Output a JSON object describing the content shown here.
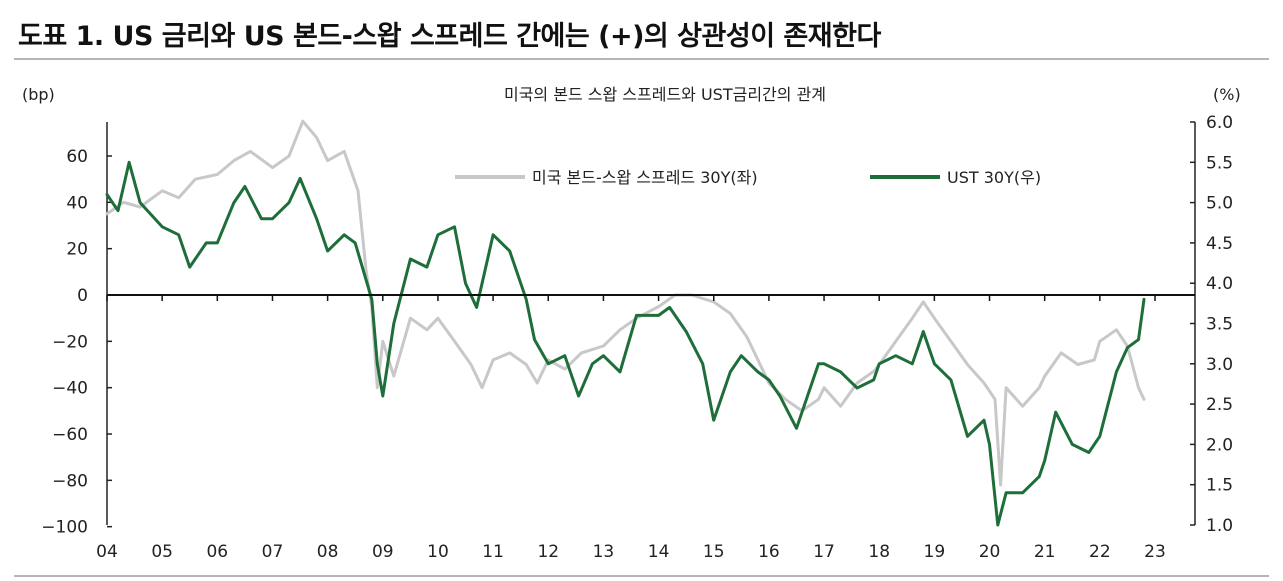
{
  "figure": {
    "title": "도표 1. US 금리와 US 본드-스왑 스프레드 간에는 (+)의 상관성이 존재한다"
  },
  "chart_data": {
    "type": "line",
    "title": "미국의 본드 스왑 스프레드와 UST금리간의 관계",
    "ylabel_left": "(bp)",
    "ylabel_right": "(%)",
    "x_ticks": [
      "04",
      "05",
      "06",
      "07",
      "08",
      "09",
      "10",
      "11",
      "12",
      "13",
      "14",
      "15",
      "16",
      "17",
      "18",
      "19",
      "20",
      "21",
      "22",
      "23"
    ],
    "y_left_ticks": [
      "60",
      "40",
      "20",
      "0",
      "−20",
      "−40",
      "−60",
      "−80",
      "−100"
    ],
    "y_right_ticks": [
      "6.0",
      "5.5",
      "5.0",
      "4.5",
      "4.0",
      "3.5",
      "3.0",
      "2.5",
      "2.0",
      "1.5",
      "1.0"
    ],
    "ylim_left": [
      -100,
      75
    ],
    "ylim_right": [
      1.0,
      6.0
    ],
    "xlim": [
      2004,
      2023
    ],
    "legend_position": "top",
    "series": [
      {
        "name": "미국 본드-스왑 스프레드 30Y(좌)",
        "axis": "left",
        "color": "#c8c8c8",
        "points": [
          [
            2004.0,
            35
          ],
          [
            2004.3,
            40
          ],
          [
            2004.6,
            38
          ],
          [
            2005.0,
            45
          ],
          [
            2005.3,
            42
          ],
          [
            2005.6,
            50
          ],
          [
            2006.0,
            52
          ],
          [
            2006.3,
            58
          ],
          [
            2006.6,
            62
          ],
          [
            2007.0,
            55
          ],
          [
            2007.3,
            60
          ],
          [
            2007.55,
            75
          ],
          [
            2007.8,
            68
          ],
          [
            2008.0,
            58
          ],
          [
            2008.3,
            62
          ],
          [
            2008.55,
            45
          ],
          [
            2008.7,
            10
          ],
          [
            2008.8,
            -5
          ],
          [
            2008.9,
            -40
          ],
          [
            2009.0,
            -20
          ],
          [
            2009.2,
            -35
          ],
          [
            2009.5,
            -10
          ],
          [
            2009.8,
            -15
          ],
          [
            2010.0,
            -10
          ],
          [
            2010.3,
            -20
          ],
          [
            2010.6,
            -30
          ],
          [
            2010.8,
            -40
          ],
          [
            2011.0,
            -28
          ],
          [
            2011.3,
            -25
          ],
          [
            2011.6,
            -30
          ],
          [
            2011.8,
            -38
          ],
          [
            2012.0,
            -28
          ],
          [
            2012.3,
            -32
          ],
          [
            2012.6,
            -25
          ],
          [
            2013.0,
            -22
          ],
          [
            2013.3,
            -15
          ],
          [
            2013.6,
            -10
          ],
          [
            2014.0,
            -5
          ],
          [
            2014.3,
            0
          ],
          [
            2014.6,
            0
          ],
          [
            2015.0,
            -3
          ],
          [
            2015.3,
            -8
          ],
          [
            2015.6,
            -18
          ],
          [
            2015.8,
            -28
          ],
          [
            2016.0,
            -38
          ],
          [
            2016.3,
            -45
          ],
          [
            2016.6,
            -50
          ],
          [
            2016.9,
            -45
          ],
          [
            2017.0,
            -40
          ],
          [
            2017.3,
            -48
          ],
          [
            2017.6,
            -38
          ],
          [
            2017.9,
            -33
          ],
          [
            2018.0,
            -30
          ],
          [
            2018.3,
            -20
          ],
          [
            2018.6,
            -10
          ],
          [
            2018.8,
            -3
          ],
          [
            2019.0,
            -10
          ],
          [
            2019.3,
            -20
          ],
          [
            2019.6,
            -30
          ],
          [
            2019.9,
            -38
          ],
          [
            2020.1,
            -45
          ],
          [
            2020.2,
            -82
          ],
          [
            2020.3,
            -40
          ],
          [
            2020.6,
            -48
          ],
          [
            2020.9,
            -40
          ],
          [
            2021.0,
            -35
          ],
          [
            2021.3,
            -25
          ],
          [
            2021.6,
            -30
          ],
          [
            2021.9,
            -28
          ],
          [
            2022.0,
            -20
          ],
          [
            2022.3,
            -15
          ],
          [
            2022.5,
            -22
          ],
          [
            2022.7,
            -40
          ],
          [
            2022.8,
            -45
          ]
        ]
      },
      {
        "name": "UST 30Y(우)",
        "axis": "right",
        "color": "#1e6e3a",
        "points": [
          [
            2004.0,
            5.1
          ],
          [
            2004.2,
            4.9
          ],
          [
            2004.4,
            5.5
          ],
          [
            2004.6,
            5.0
          ],
          [
            2005.0,
            4.7
          ],
          [
            2005.3,
            4.6
          ],
          [
            2005.5,
            4.2
          ],
          [
            2005.8,
            4.5
          ],
          [
            2006.0,
            4.5
          ],
          [
            2006.3,
            5.0
          ],
          [
            2006.5,
            5.2
          ],
          [
            2006.8,
            4.8
          ],
          [
            2007.0,
            4.8
          ],
          [
            2007.3,
            5.0
          ],
          [
            2007.5,
            5.3
          ],
          [
            2007.8,
            4.8
          ],
          [
            2008.0,
            4.4
          ],
          [
            2008.3,
            4.6
          ],
          [
            2008.5,
            4.5
          ],
          [
            2008.8,
            3.8
          ],
          [
            2008.9,
            3.0
          ],
          [
            2009.0,
            2.6
          ],
          [
            2009.2,
            3.5
          ],
          [
            2009.5,
            4.3
          ],
          [
            2009.8,
            4.2
          ],
          [
            2010.0,
            4.6
          ],
          [
            2010.3,
            4.7
          ],
          [
            2010.5,
            4.0
          ],
          [
            2010.7,
            3.7
          ],
          [
            2010.9,
            4.3
          ],
          [
            2011.0,
            4.6
          ],
          [
            2011.3,
            4.4
          ],
          [
            2011.6,
            3.8
          ],
          [
            2011.75,
            3.3
          ],
          [
            2012.0,
            3.0
          ],
          [
            2012.3,
            3.1
          ],
          [
            2012.55,
            2.6
          ],
          [
            2012.8,
            3.0
          ],
          [
            2013.0,
            3.1
          ],
          [
            2013.3,
            2.9
          ],
          [
            2013.6,
            3.6
          ],
          [
            2014.0,
            3.6
          ],
          [
            2014.2,
            3.7
          ],
          [
            2014.5,
            3.4
          ],
          [
            2014.8,
            3.0
          ],
          [
            2015.0,
            2.3
          ],
          [
            2015.3,
            2.9
          ],
          [
            2015.5,
            3.1
          ],
          [
            2015.8,
            2.9
          ],
          [
            2016.0,
            2.8
          ],
          [
            2016.2,
            2.6
          ],
          [
            2016.5,
            2.2
          ],
          [
            2016.8,
            2.8
          ],
          [
            2016.9,
            3.0
          ],
          [
            2017.0,
            3.0
          ],
          [
            2017.3,
            2.9
          ],
          [
            2017.6,
            2.7
          ],
          [
            2017.9,
            2.8
          ],
          [
            2018.0,
            3.0
          ],
          [
            2018.3,
            3.1
          ],
          [
            2018.6,
            3.0
          ],
          [
            2018.8,
            3.4
          ],
          [
            2019.0,
            3.0
          ],
          [
            2019.3,
            2.8
          ],
          [
            2019.6,
            2.1
          ],
          [
            2019.9,
            2.3
          ],
          [
            2020.0,
            2.0
          ],
          [
            2020.15,
            1.0
          ],
          [
            2020.3,
            1.4
          ],
          [
            2020.6,
            1.4
          ],
          [
            2020.9,
            1.6
          ],
          [
            2021.0,
            1.8
          ],
          [
            2021.2,
            2.4
          ],
          [
            2021.5,
            2.0
          ],
          [
            2021.8,
            1.9
          ],
          [
            2022.0,
            2.1
          ],
          [
            2022.3,
            2.9
          ],
          [
            2022.5,
            3.2
          ],
          [
            2022.7,
            3.3
          ],
          [
            2022.8,
            3.8
          ]
        ]
      }
    ]
  }
}
